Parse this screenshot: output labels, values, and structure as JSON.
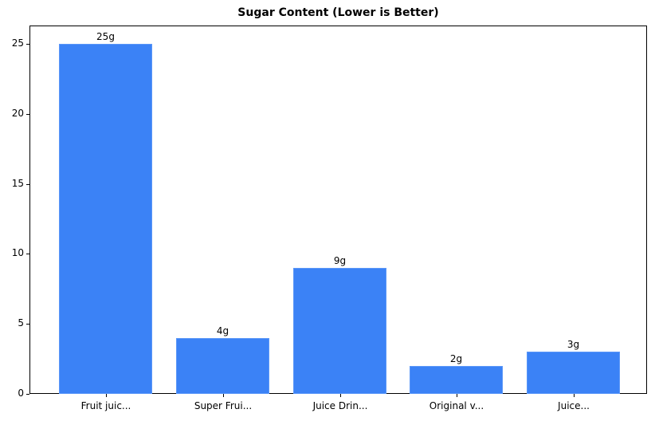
{
  "chart_data": {
    "type": "bar",
    "title": "Sugar Content (Lower is Better)",
    "xlabel": "",
    "ylabel": "",
    "categories": [
      "Fruit juic...",
      "Super Frui...",
      "Juice Drin...",
      "Original v...",
      "Juice..."
    ],
    "values": [
      25,
      4,
      9,
      2,
      3
    ],
    "value_labels": [
      "25g",
      "4g",
      "9g",
      "2g",
      "3g"
    ],
    "yticks": [
      0,
      5,
      10,
      15,
      20,
      25
    ],
    "ylim": [
      0,
      26.25
    ],
    "grid": false,
    "legend": null,
    "bar_color": "#3b82f6"
  }
}
